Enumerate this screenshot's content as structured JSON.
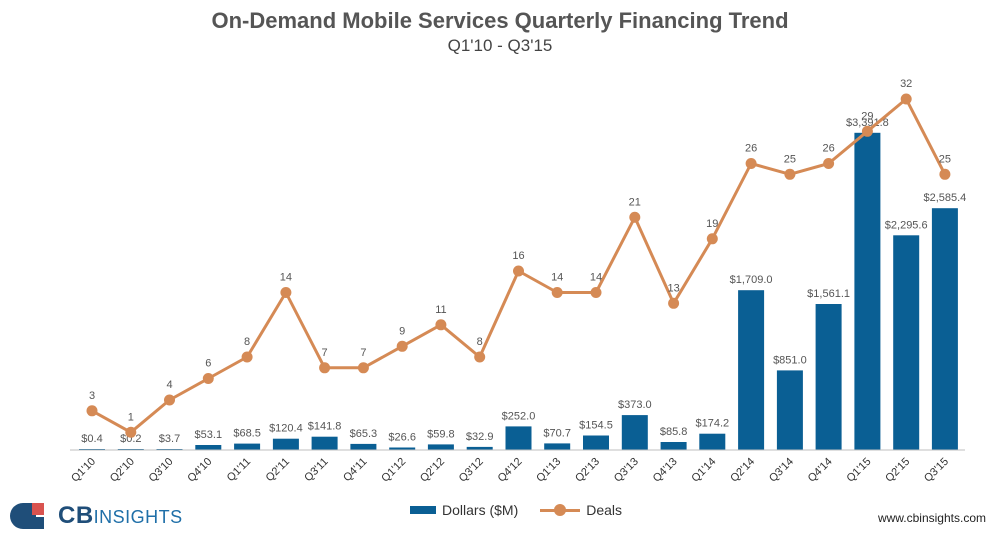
{
  "header": {
    "title": "On-Demand Mobile Services Quarterly Financing Trend",
    "subtitle": "Q1'10 - Q3'15"
  },
  "footer": {
    "brand_bold": "CB",
    "brand_thin": "INSIGHTS",
    "website": "www.cbinsights.com"
  },
  "legend": {
    "bar_label": "Dollars ($M)",
    "line_label": "Deals"
  },
  "colors": {
    "bar": "#0a5f94",
    "line": "#d58a55",
    "text": "#555555"
  },
  "chart_data": {
    "type": "bar",
    "title": "On-Demand Mobile Services Quarterly Financing Trend",
    "subtitle": "Q1'10 - Q3'15",
    "categories": [
      "Q1'10",
      "Q2'10",
      "Q3'10",
      "Q4'10",
      "Q1'11",
      "Q2'11",
      "Q3'11",
      "Q4'11",
      "Q1'12",
      "Q2'12",
      "Q3'12",
      "Q4'12",
      "Q1'13",
      "Q2'13",
      "Q3'13",
      "Q4'13",
      "Q1'14",
      "Q2'14",
      "Q3'14",
      "Q4'14",
      "Q1'15",
      "Q2'15",
      "Q3'15"
    ],
    "series": [
      {
        "name": "Dollars ($M)",
        "type": "bar",
        "values": [
          0.4,
          0.2,
          3.7,
          53.1,
          68.5,
          120.4,
          141.8,
          65.3,
          26.6,
          59.8,
          32.9,
          252.0,
          70.7,
          154.5,
          373.0,
          85.8,
          174.2,
          1709.0,
          851.0,
          1561.1,
          3391.8,
          2295.6,
          2585.4
        ],
        "labels": [
          "$0.4",
          "$0.2",
          "$3.7",
          "$53.1",
          "$68.5",
          "$120.4",
          "$141.8",
          "$65.3",
          "$26.6",
          "$59.8",
          "$32.9",
          "$252.0",
          "$70.7",
          "$154.5",
          "$373.0",
          "$85.8",
          "$174.2",
          "$1,709.0",
          "$851.0",
          "$1,561.1",
          "$3,391.8",
          "$2,295.6",
          "$2,585.4"
        ]
      },
      {
        "name": "Deals",
        "type": "line",
        "values": [
          3,
          1,
          4,
          6,
          8,
          14,
          7,
          7,
          9,
          11,
          8,
          16,
          14,
          14,
          21,
          13,
          19,
          26,
          25,
          26,
          29,
          32,
          25
        ]
      }
    ],
    "ylim_dollars": [
      0,
      3400
    ],
    "ylim_deals": [
      0,
      34
    ],
    "grid": false,
    "legend_position": "bottom"
  }
}
